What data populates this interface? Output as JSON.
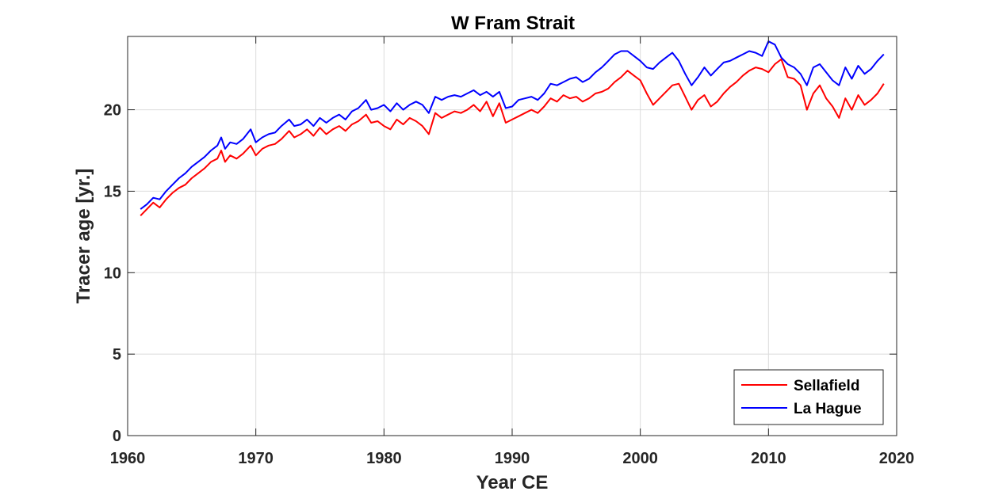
{
  "chart_data": {
    "type": "line",
    "title": "W Fram Strait",
    "xlabel": "Year CE",
    "ylabel": "Tracer age [yr.]",
    "xlim": [
      1960,
      2020
    ],
    "ylim": [
      0,
      24.5
    ],
    "xticks": [
      1960,
      1970,
      1980,
      1990,
      2000,
      2010,
      2020
    ],
    "yticks": [
      0,
      5,
      10,
      15,
      20
    ],
    "grid": true,
    "legend_position": "bottom-right",
    "series": [
      {
        "name": "Sellafield",
        "color": "#ff0000",
        "x": [
          1961.0,
          1961.5,
          1962.0,
          1962.5,
          1963.0,
          1963.5,
          1964.0,
          1964.5,
          1965.0,
          1965.5,
          1966.0,
          1966.5,
          1967.0,
          1967.3,
          1967.6,
          1968.0,
          1968.5,
          1969.0,
          1969.6,
          1970.0,
          1970.5,
          1971.0,
          1971.5,
          1972.0,
          1972.6,
          1973.0,
          1973.5,
          1974.0,
          1974.5,
          1975.0,
          1975.5,
          1976.0,
          1976.5,
          1977.0,
          1977.5,
          1978.0,
          1978.6,
          1979.0,
          1979.5,
          1980.0,
          1980.5,
          1981.0,
          1981.5,
          1982.0,
          1982.5,
          1983.0,
          1983.5,
          1984.0,
          1984.5,
          1985.0,
          1985.5,
          1986.0,
          1986.5,
          1987.0,
          1987.5,
          1988.0,
          1988.5,
          1989.0,
          1989.5,
          1990.0,
          1990.5,
          1991.0,
          1991.5,
          1992.0,
          1992.5,
          1993.0,
          1993.5,
          1994.0,
          1994.5,
          1995.0,
          1995.5,
          1996.0,
          1996.5,
          1997.0,
          1997.5,
          1998.0,
          1998.5,
          1999.0,
          1999.5,
          2000.0,
          2000.5,
          2001.0,
          2001.5,
          2002.0,
          2002.5,
          2003.0,
          2003.5,
          2004.0,
          2004.5,
          2005.0,
          2005.5,
          2006.0,
          2006.5,
          2007.0,
          2007.5,
          2008.0,
          2008.5,
          2009.0,
          2009.5,
          2010.0,
          2010.5,
          2011.0,
          2011.5,
          2012.0,
          2012.5,
          2013.0,
          2013.5,
          2014.0,
          2014.5,
          2015.0,
          2015.5,
          2016.0,
          2016.5,
          2017.0,
          2017.5,
          2018.0,
          2018.5,
          2019.0
        ],
        "values": [
          13.5,
          13.9,
          14.3,
          14.0,
          14.5,
          14.9,
          15.2,
          15.4,
          15.8,
          16.1,
          16.4,
          16.8,
          17.0,
          17.5,
          16.8,
          17.2,
          17.0,
          17.3,
          17.8,
          17.2,
          17.6,
          17.8,
          17.9,
          18.2,
          18.7,
          18.3,
          18.5,
          18.8,
          18.4,
          18.9,
          18.5,
          18.8,
          19.0,
          18.7,
          19.1,
          19.3,
          19.7,
          19.2,
          19.3,
          19.0,
          18.8,
          19.4,
          19.1,
          19.5,
          19.3,
          19.0,
          18.5,
          19.8,
          19.5,
          19.7,
          19.9,
          19.8,
          20.0,
          20.3,
          19.9,
          20.5,
          19.6,
          20.4,
          19.2,
          19.4,
          19.6,
          19.8,
          20.0,
          19.8,
          20.2,
          20.7,
          20.5,
          20.9,
          20.7,
          20.8,
          20.5,
          20.7,
          21.0,
          21.1,
          21.3,
          21.7,
          22.0,
          22.4,
          22.1,
          21.8,
          21.0,
          20.3,
          20.7,
          21.1,
          21.5,
          21.6,
          20.8,
          20.0,
          20.6,
          20.9,
          20.2,
          20.5,
          21.0,
          21.4,
          21.7,
          22.1,
          22.4,
          22.6,
          22.5,
          22.3,
          22.8,
          23.1,
          22.0,
          21.9,
          21.5,
          20.0,
          21.0,
          21.5,
          20.7,
          20.2,
          19.5,
          20.7,
          20.0,
          20.9,
          20.3,
          20.6,
          21.0,
          21.6
        ],
        "style": "solid"
      },
      {
        "name": "La Hague",
        "color": "#0000ff",
        "x": [
          1961.0,
          1961.5,
          1962.0,
          1962.5,
          1963.0,
          1963.5,
          1964.0,
          1964.5,
          1965.0,
          1965.5,
          1966.0,
          1966.5,
          1967.0,
          1967.3,
          1967.6,
          1968.0,
          1968.5,
          1969.0,
          1969.6,
          1970.0,
          1970.5,
          1971.0,
          1971.5,
          1972.0,
          1972.6,
          1973.0,
          1973.5,
          1974.0,
          1974.5,
          1975.0,
          1975.5,
          1976.0,
          1976.5,
          1977.0,
          1977.5,
          1978.0,
          1978.6,
          1979.0,
          1979.5,
          1980.0,
          1980.5,
          1981.0,
          1981.5,
          1982.0,
          1982.5,
          1983.0,
          1983.5,
          1984.0,
          1984.5,
          1985.0,
          1985.5,
          1986.0,
          1986.5,
          1987.0,
          1987.5,
          1988.0,
          1988.5,
          1989.0,
          1989.5,
          1990.0,
          1990.5,
          1991.0,
          1991.5,
          1992.0,
          1992.5,
          1993.0,
          1993.5,
          1994.0,
          1994.5,
          1995.0,
          1995.5,
          1996.0,
          1996.5,
          1997.0,
          1997.5,
          1998.0,
          1998.5,
          1999.0,
          1999.5,
          2000.0,
          2000.5,
          2001.0,
          2001.5,
          2002.0,
          2002.5,
          2003.0,
          2003.5,
          2004.0,
          2004.5,
          2005.0,
          2005.5,
          2006.0,
          2006.5,
          2007.0,
          2007.5,
          2008.0,
          2008.5,
          2009.0,
          2009.5,
          2010.0,
          2010.5,
          2011.0,
          2011.5,
          2012.0,
          2012.5,
          2013.0,
          2013.5,
          2014.0,
          2014.5,
          2015.0,
          2015.5,
          2016.0,
          2016.5,
          2017.0,
          2017.5,
          2018.0,
          2018.5,
          2019.0
        ],
        "values": [
          13.9,
          14.2,
          14.6,
          14.5,
          15.0,
          15.4,
          15.8,
          16.1,
          16.5,
          16.8,
          17.1,
          17.5,
          17.8,
          18.3,
          17.6,
          18.0,
          17.9,
          18.2,
          18.8,
          18.0,
          18.3,
          18.5,
          18.6,
          19.0,
          19.4,
          19.0,
          19.1,
          19.4,
          19.0,
          19.5,
          19.2,
          19.5,
          19.7,
          19.4,
          19.9,
          20.1,
          20.6,
          20.0,
          20.1,
          20.3,
          19.9,
          20.4,
          20.0,
          20.3,
          20.5,
          20.3,
          19.8,
          20.8,
          20.6,
          20.8,
          20.9,
          20.8,
          21.0,
          21.2,
          20.9,
          21.1,
          20.8,
          21.1,
          20.1,
          20.2,
          20.6,
          20.7,
          20.8,
          20.6,
          21.0,
          21.6,
          21.5,
          21.7,
          21.9,
          22.0,
          21.7,
          21.9,
          22.3,
          22.6,
          23.0,
          23.4,
          23.6,
          23.6,
          23.3,
          23.0,
          22.6,
          22.5,
          22.9,
          23.2,
          23.5,
          23.0,
          22.2,
          21.5,
          22.0,
          22.6,
          22.1,
          22.5,
          22.9,
          23.0,
          23.2,
          23.4,
          23.6,
          23.5,
          23.3,
          24.2,
          24.0,
          23.2,
          22.8,
          22.6,
          22.2,
          21.5,
          22.6,
          22.8,
          22.3,
          21.8,
          21.5,
          22.6,
          21.9,
          22.7,
          22.2,
          22.5,
          23.0,
          23.4
        ],
        "style": "solid"
      }
    ]
  }
}
